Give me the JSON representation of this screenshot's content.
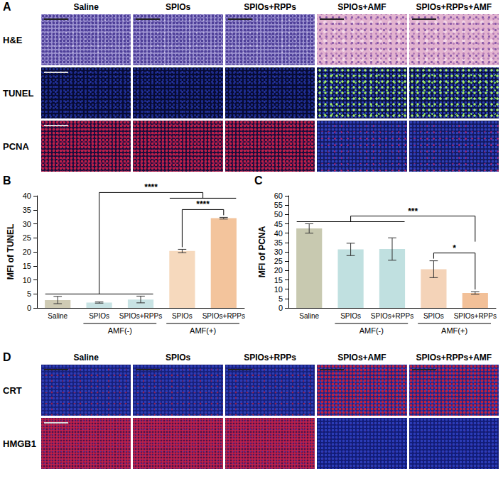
{
  "panel_A": {
    "label": "A",
    "columns": [
      "Saline",
      "SPIOs",
      "SPIOs+RPPs",
      "SPIOs+AMF",
      "SPIOs+RPPs+AMF"
    ],
    "rows": [
      "H&E",
      "TUNEL",
      "PCNA"
    ]
  },
  "chart_data": [
    {
      "panel": "B",
      "type": "bar",
      "y_label": "MFI of TUNEL",
      "categories": [
        "Saline",
        "SPIOs",
        "SPIOs+RPPs",
        "SPIOs",
        "SPIOs+RPPs"
      ],
      "values": [
        2.8,
        1.9,
        3.0,
        20.3,
        32.0
      ],
      "errors": [
        1.3,
        0.2,
        1.2,
        0.6,
        0.3
      ],
      "colors": [
        "#cfcbb4",
        "#c8e3e4",
        "#c8e3e4",
        "#f6d9bd",
        "#f3c49c"
      ],
      "ylim": [
        0,
        40
      ],
      "yticks": [
        0,
        5,
        10,
        15,
        20,
        25,
        30,
        35,
        40
      ],
      "grid": false,
      "groups": [
        {
          "label": "AMF(-)",
          "categories": [
            1,
            2
          ]
        },
        {
          "label": "AMF(+)",
          "categories": [
            3,
            4
          ]
        }
      ],
      "annotations": [
        {
          "text": "****",
          "left": [
            3
          ],
          "right": [
            4
          ]
        },
        {
          "text": "****",
          "left": [
            0,
            1,
            2
          ],
          "right": [
            3,
            4
          ]
        }
      ]
    },
    {
      "panel": "C",
      "type": "bar",
      "y_label": "MFI of PCNA",
      "categories": [
        "Saline",
        "SPIOs",
        "SPIOs+RPPs",
        "SPIOs",
        "SPIOs+RPPs"
      ],
      "values": [
        42.5,
        31.3,
        31.5,
        20.7,
        8.0
      ],
      "errors": [
        2.5,
        3.3,
        6.0,
        4.5,
        0.7
      ],
      "colors": [
        "#c8c9b0",
        "#c0e0e0",
        "#c0e0e0",
        "#f4d3b8",
        "#f2c098"
      ],
      "ylim": [
        0,
        60
      ],
      "yticks": [
        0,
        5,
        10,
        15,
        20,
        25,
        30,
        35,
        40,
        45,
        50,
        55,
        60
      ],
      "grid": false,
      "groups": [
        {
          "label": "AMF(-)",
          "categories": [
            1,
            2
          ]
        },
        {
          "label": "AMF(+)",
          "categories": [
            3,
            4
          ]
        }
      ],
      "annotations": [
        {
          "text": "*",
          "left": [
            3
          ],
          "right": [
            4
          ]
        },
        {
          "text": "***",
          "left": [
            0,
            1,
            2
          ],
          "right": [
            4
          ]
        }
      ]
    }
  ],
  "panel_D": {
    "label": "D",
    "columns": [
      "Saline",
      "SPIOs",
      "SPIOs+RPPs",
      "SPIOs+AMF",
      "SPIOs+RPPs+AMF"
    ],
    "rows": [
      "CRT",
      "HMGB1"
    ]
  }
}
